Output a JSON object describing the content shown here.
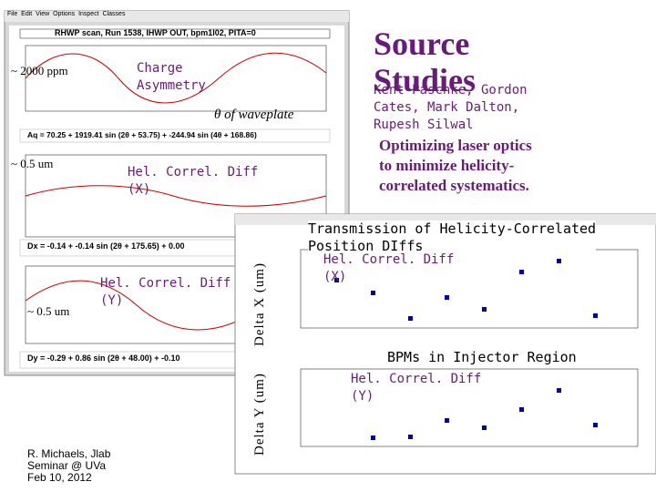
{
  "left_panel": {
    "menu": [
      "File",
      "Edit",
      "View",
      "Options",
      "Inspect",
      "Classes"
    ],
    "plot_title": "RHWP scan, Run 1538, IHWP OUT, bpm1I02, PITA=0",
    "axis_title": "θ  of  waveplate",
    "fit_aq": "Aq = 70.25 + 1919.41 sin (2θ + 53.75) + -244.94 sin (4θ + 168.86)",
    "fit_dx": "Dx = -0.14 + -0.14 sin (2θ + 175.65) + 0.00",
    "fit_dy": "Dy = -0.29 + 0.86 sin (2θ + 48.00) + -0.10",
    "scale_aq": "~ 2000 ppm",
    "label_aq": [
      "Charge",
      "Asymmetry"
    ],
    "scale_dx": "~ 0.5 um",
    "label_dx": [
      "Hel. Correl.  Diff",
      "(X)"
    ],
    "label_dy": [
      "Hel. Correl.  Diff",
      "(Y)"
    ],
    "scale_dy": "~ 0.5 um"
  },
  "credit": [
    "R. Michaels,  Jlab",
    "Seminar @ UVa",
    "Feb 10, 2012"
  ],
  "header": {
    "title": [
      "Source",
      "Studies"
    ],
    "authors": [
      "Kent Paschke,   Gordon",
      "Cates,  Mark  Dalton,",
      "Rupesh  Silwal"
    ],
    "goal": [
      "Optimizing  laser  optics",
      "to  minimize  helicity-",
      "correlated  systematics."
    ]
  },
  "right_panel": {
    "title": [
      "Transmission  of  Helicity-Correlated",
      "Position  DIffs"
    ],
    "label_x": [
      "Hel.  Correl.  Diff",
      "(X)"
    ],
    "axis_x": "Delta X (um)",
    "x_axis_title": "BPMs    in    Injector  Region",
    "label_y": [
      "Hel.  Correl.  Diff",
      "(Y)"
    ],
    "axis_y": "Delta Y (um)"
  }
}
